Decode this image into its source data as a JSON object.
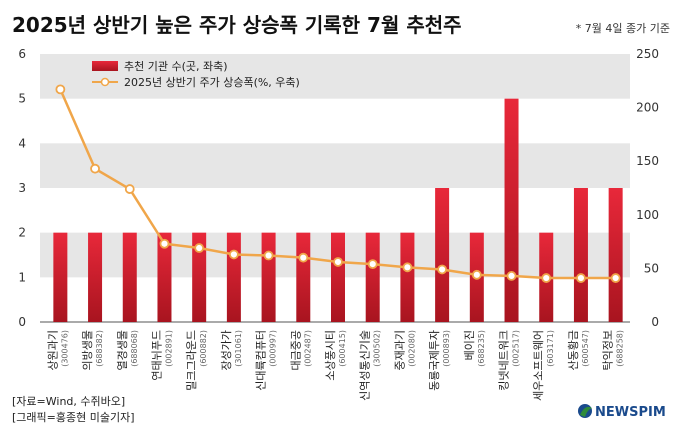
{
  "title": "2025년 상반기 높은 주가 상승폭 기록한 7월 추천주",
  "note": "* 7월 4일 종가 기준",
  "source": "[자료=Wind, 수쥐바오]",
  "credit": "[그래픽=홍종현 미술기자]",
  "brand": "NEWSPIM",
  "colors": {
    "bar_top": "#e8283a",
    "bar_bottom": "#a8141f",
    "line": "#f0a64a",
    "marker_fill": "#ffffff",
    "band": "#e6e6e6",
    "axis_text": "#333333",
    "brand_blue": "#1a4a8c",
    "brand_green": "#2e8b3a"
  },
  "chart_data": {
    "type": "bar",
    "categories": [
      {
        "name": "상원과기",
        "code": "(300476)"
      },
      {
        "name": "의방생물",
        "code": "(688382)"
      },
      {
        "name": "열경생물",
        "code": "(688068)"
      },
      {
        "name": "연태뉘푸드",
        "code": "(002891)"
      },
      {
        "name": "밀크그라운드",
        "code": "(600882)"
      },
      {
        "name": "장성가가",
        "code": "(301061)"
      },
      {
        "name": "신대륙컴퓨터",
        "code": "(000997)"
      },
      {
        "name": "대금중공",
        "code": "(002487)"
      },
      {
        "name": "소상풍시티",
        "code": "(600415)"
      },
      {
        "name": "신역성통신기술",
        "code": "(300502)"
      },
      {
        "name": "중재과기",
        "code": "(002080)"
      },
      {
        "name": "동룡국제투자",
        "code": "(000893)"
      },
      {
        "name": "베이진",
        "code": "(688235)"
      },
      {
        "name": "킹넷네트워크",
        "code": "(002517)"
      },
      {
        "name": "세우소프트웨어",
        "code": "(603171)"
      },
      {
        "name": "산동황금",
        "code": "(600547)"
      },
      {
        "name": "탁익정보",
        "code": "(688258)"
      }
    ],
    "series": [
      {
        "name": "추천 기관 수(곳, 좌축)",
        "type": "bar",
        "axis": "left",
        "values": [
          2,
          2,
          2,
          2,
          2,
          2,
          2,
          2,
          2,
          2,
          2,
          3,
          2,
          5,
          2,
          3,
          3
        ]
      },
      {
        "name": "2025년 상반기 주가 상승폭(%, 우축)",
        "type": "line",
        "axis": "right",
        "values": [
          217,
          143,
          124,
          73,
          69,
          63,
          62,
          60,
          56,
          54,
          51,
          49,
          44,
          43,
          41,
          41,
          41
        ]
      }
    ],
    "y_left": {
      "min": 0,
      "max": 6,
      "ticks": [
        0,
        1,
        2,
        3,
        4,
        5,
        6
      ]
    },
    "y_right": {
      "min": 0,
      "max": 250,
      "ticks": [
        0,
        50,
        100,
        150,
        200,
        250
      ]
    },
    "grid": "alternating horizontal bands",
    "legend_position": "top-left"
  }
}
